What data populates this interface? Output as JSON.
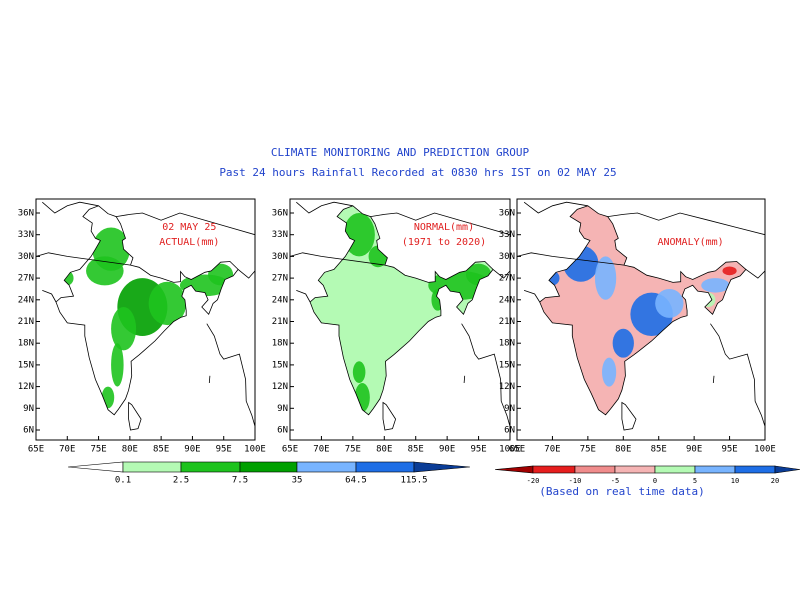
{
  "header": {
    "title": "CLIMATE MONITORING AND PREDICTION GROUP",
    "subtitle": "Past 24 hours Rainfall Recorded at 0830 hrs IST on 02 MAY 25"
  },
  "lat_ticks": [
    "6N",
    "9N",
    "12N",
    "15N",
    "18N",
    "21N",
    "24N",
    "27N",
    "30N",
    "33N",
    "36N"
  ],
  "lon_ticks": [
    "65E",
    "70E",
    "75E",
    "80E",
    "85E",
    "90E",
    "95E",
    "100E"
  ],
  "panels": [
    {
      "labels": [
        "02 MAY 25",
        "ACTUAL(mm)"
      ],
      "base": "#ffffff"
    },
    {
      "labels": [
        "NORMAL(mm)",
        "(1971 to 2020)"
      ],
      "base": "#b4fab4"
    },
    {
      "labels": [
        "ANOMALY(mm)"
      ],
      "base": "#f5b4b4"
    }
  ],
  "rain_scale": {
    "ticks": [
      0.1,
      2.5,
      7.5,
      35,
      64.5,
      115.5
    ],
    "colors": [
      "#ffffff",
      "#b4fab4",
      "#1ec31e",
      "#00a000",
      "#78b4ff",
      "#1e6ee6",
      "#0a3c96"
    ]
  },
  "anomaly_scale": {
    "ticks": [
      -20,
      -10,
      -5,
      0,
      5,
      10,
      20
    ],
    "colors": [
      "#a00000",
      "#e61e1e",
      "#f08c8c",
      "#f5b4b4",
      "#b4fab4",
      "#78b4ff",
      "#1e6ee6",
      "#0a3c96"
    ],
    "note": "(Based on real time data)"
  }
}
